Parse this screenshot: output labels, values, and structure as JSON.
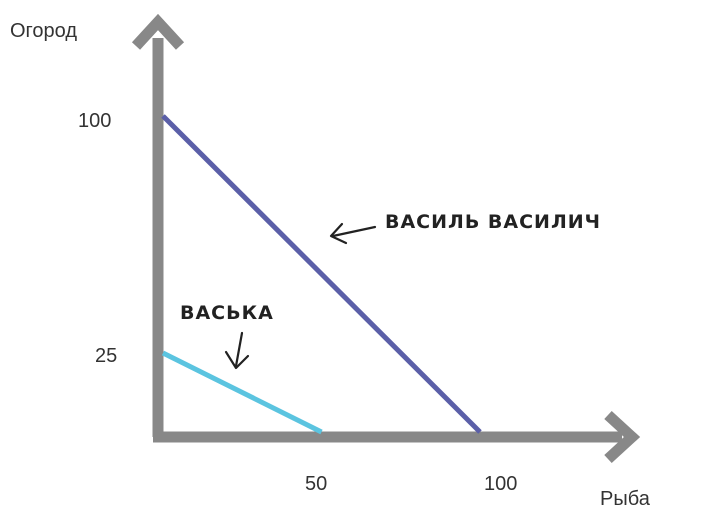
{
  "chart_data": {
    "type": "line",
    "title": "",
    "xlabel": "Рыба",
    "ylabel": "Огород",
    "x_ticks": [
      "50",
      "100"
    ],
    "y_ticks": [
      "100",
      "25"
    ],
    "xlim": [
      0,
      100
    ],
    "ylim": [
      0,
      100
    ],
    "grid": false,
    "series": [
      {
        "name": "ВАСИЛЬ ВАСИЛИЧ",
        "color": "#5b5fa8",
        "x": [
          0,
          100
        ],
        "y": [
          100,
          0
        ]
      },
      {
        "name": "ВАСЬКА",
        "color": "#5bc4e0",
        "x": [
          0,
          50
        ],
        "y": [
          25,
          0
        ]
      }
    ]
  },
  "axis_color": "#888888"
}
